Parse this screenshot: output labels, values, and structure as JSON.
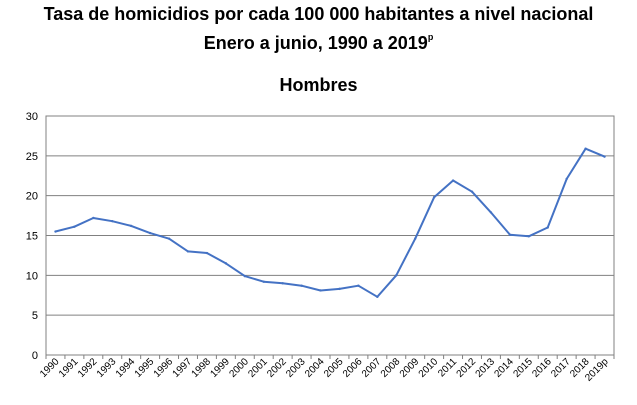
{
  "title_line1": "Tasa de homicidios por cada 100 000 habitantes a nivel nacional",
  "title_line2": "Enero a junio, 1990 a 2019",
  "title_line2_sup": "p",
  "subtitle": "Hombres",
  "colors": {
    "line": "#4472C4",
    "grid": "#808080",
    "frame": "#808080",
    "text": "#000000"
  },
  "chart_data": {
    "type": "line",
    "title": "Tasa de homicidios por cada 100 000 habitantes a nivel nacional",
    "subtitle": "Hombres",
    "categories": [
      "1990",
      "1991",
      "1992",
      "1993",
      "1994",
      "1995",
      "1996",
      "1997",
      "1998",
      "1999",
      "2000",
      "2001",
      "2002",
      "2003",
      "2004",
      "2005",
      "2006",
      "2007",
      "2008",
      "2009",
      "2010",
      "2011",
      "2012",
      "2013",
      "2014",
      "2015",
      "2016",
      "2017",
      "2018",
      "2019p"
    ],
    "series": [
      {
        "values": [
          15.5,
          16.1,
          17.2,
          16.8,
          16.2,
          15.3,
          14.6,
          13.0,
          12.8,
          11.5,
          9.9,
          9.2,
          9.0,
          8.7,
          8.1,
          8.3,
          8.7,
          7.3,
          10.0,
          14.6,
          19.8,
          21.9,
          20.5,
          17.9,
          15.1,
          14.9,
          16.0,
          22.1,
          25.9,
          24.9
        ]
      }
    ],
    "yticks": [
      0,
      5,
      10,
      15,
      20,
      25,
      30
    ],
    "ylim": [
      0,
      30
    ],
    "grid": true,
    "legend": "none"
  }
}
